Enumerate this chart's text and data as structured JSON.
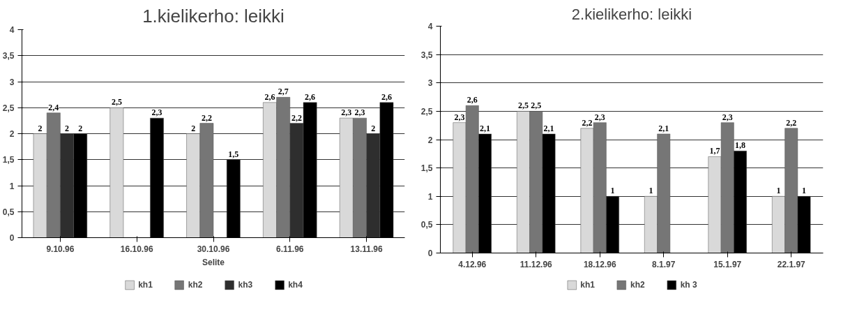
{
  "chart_data": [
    {
      "type": "bar",
      "title": "1.kielikerho: leikki",
      "xlabel": "Selite",
      "categories": [
        "9.10.96",
        "16.10.96",
        "30.10.96",
        "6.11.96",
        "13.11.96"
      ],
      "series": [
        {
          "name": "kh1",
          "color": "#d9d9d9",
          "values": [
            2,
            2.5,
            2,
            2.6,
            2.3
          ],
          "value_labels": [
            "2",
            "2,5",
            "2",
            "2,6",
            "2,3"
          ]
        },
        {
          "name": "kh2",
          "color": "#767676",
          "values": [
            2.4,
            null,
            2.2,
            2.7,
            2.3
          ],
          "value_labels": [
            "2,4",
            null,
            "2,2",
            "2,7",
            "2,3"
          ]
        },
        {
          "name": "kh3",
          "color": "#2e2e2e",
          "values": [
            2,
            null,
            null,
            2.2,
            2
          ],
          "value_labels": [
            "2",
            null,
            null,
            "2,2",
            "2"
          ]
        },
        {
          "name": "kh4",
          "color": "#000000",
          "values": [
            2,
            2.3,
            1.5,
            2.6,
            2.6
          ],
          "value_labels": [
            "2",
            "2,3",
            "1,5",
            "2,6",
            "2,6"
          ]
        }
      ],
      "ylim": [
        0,
        4
      ],
      "yticks": [
        0,
        {
          "value": 0.5,
          "label": "0,5"
        },
        1,
        {
          "value": 1.5,
          "label": "1,5"
        },
        2,
        {
          "value": 2.5,
          "label": "2,5"
        },
        3,
        {
          "value": 3.5,
          "label": "3,5"
        },
        4
      ],
      "grid": "y",
      "legend": "bottom"
    },
    {
      "type": "bar",
      "title": "2.kielikerho: leikki",
      "categories": [
        "4.12.96",
        "11.12.96",
        "18.12.96",
        "8.1.97",
        "15.1.97",
        "22.1.97"
      ],
      "series": [
        {
          "name": "kh1",
          "color": "#d9d9d9",
          "values": [
            2.3,
            2.5,
            2.2,
            1,
            1.7,
            1
          ],
          "value_labels": [
            "2,3",
            "2,5",
            "2,2",
            "1",
            "1,7",
            "1"
          ]
        },
        {
          "name": "kh2",
          "color": "#767676",
          "values": [
            2.6,
            2.5,
            2.3,
            2.1,
            2.3,
            2.2
          ],
          "value_labels": [
            "2,6",
            "2,5",
            "2,3",
            "2,1",
            "2,3",
            "2,2"
          ]
        },
        {
          "name": "kh 3",
          "color": "#000000",
          "values": [
            2.1,
            2.1,
            1,
            null,
            1.8,
            1
          ],
          "value_labels": [
            "2,1",
            "2,1",
            "1",
            null,
            "1,8",
            "1"
          ]
        }
      ],
      "ylim": [
        0,
        4
      ],
      "yticks": [
        0,
        {
          "value": 0.5,
          "label": "0,5"
        },
        1,
        {
          "value": 1.5,
          "label": "1,5"
        },
        2,
        {
          "value": 2.5,
          "label": "2,5"
        },
        3,
        {
          "value": 3.5,
          "label": "3,5"
        },
        4
      ],
      "grid": "y",
      "legend": "bottom"
    }
  ]
}
